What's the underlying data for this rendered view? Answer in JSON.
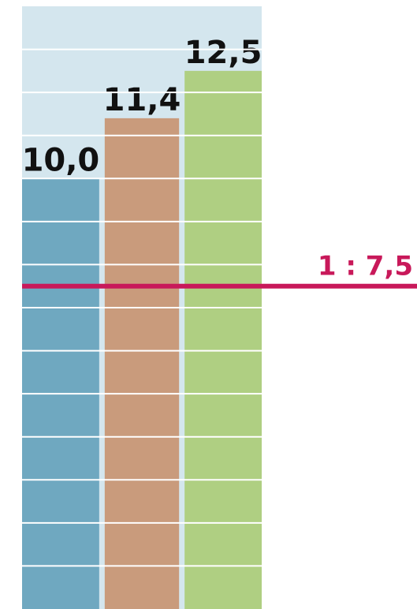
{
  "chart_data": {
    "type": "bar",
    "categories": [
      null,
      null,
      null
    ],
    "values": [
      10.0,
      11.4,
      12.5
    ],
    "value_labels": [
      "10,0",
      "11,4",
      "12,5"
    ],
    "colors": [
      "#6fa8c0",
      "#c99b7c",
      "#afcf82"
    ],
    "ylim": [
      0,
      14
    ],
    "reference_line": {
      "value": 7.5,
      "label": "1 : 7,5",
      "color": "#c8195a"
    }
  }
}
